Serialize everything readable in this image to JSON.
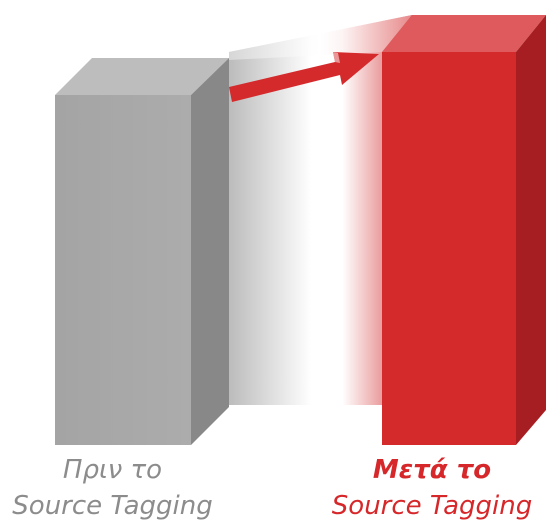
{
  "labels": {
    "before": {
      "line1": "Πριν το",
      "line2": "Source Tagging"
    },
    "after": {
      "line1": "Μετά το",
      "line2": "Source Tagging"
    }
  },
  "colors": {
    "before_front": "#a8a8a8",
    "before_side": "#8a8a8a",
    "before_top": "#bdbdbd",
    "after_front": "#d42a2c",
    "after_side": "#a81e22",
    "after_top": "#e06062",
    "arrow": "#d42a2c",
    "before_text": "#8c8c8c",
    "after_text": "#d6282b"
  }
}
